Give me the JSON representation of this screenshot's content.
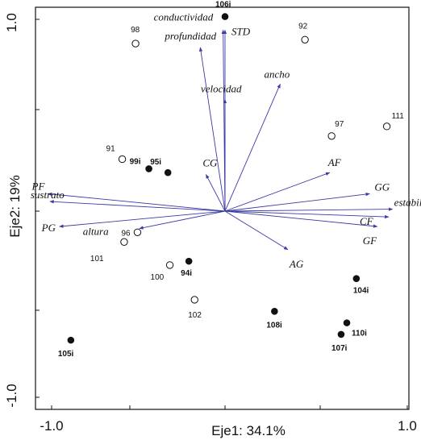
{
  "chart_data": {
    "type": "biplot",
    "xlabel": "Eje1: 34.1%",
    "ylabel": "Eje2: 19%",
    "xlim": [
      -1.0,
      1.0
    ],
    "ylim": [
      -1.0,
      1.0
    ],
    "x_tick_labels": [
      "-1.0",
      "1.0"
    ],
    "y_tick_labels": [
      "1.0",
      "-1.0"
    ],
    "vectors": [
      {
        "label": "conductividad",
        "x": -0.01,
        "y": 0.94
      },
      {
        "label": "STD",
        "x": 0.0,
        "y": 0.94
      },
      {
        "label": "profundidad",
        "x": -0.13,
        "y": 0.85
      },
      {
        "label": "velocidad",
        "x": 0.0,
        "y": 0.58
      },
      {
        "label": "ancho",
        "x": 0.29,
        "y": 0.66
      },
      {
        "label": "CG",
        "x": -0.1,
        "y": 0.19
      },
      {
        "label": "AF",
        "x": 0.55,
        "y": 0.2
      },
      {
        "label": "GG",
        "x": 0.76,
        "y": 0.09
      },
      {
        "label": "estabilidad",
        "x": 0.88,
        "y": 0.01
      },
      {
        "label": "CF",
        "x": 0.86,
        "y": -0.03
      },
      {
        "label": "GF",
        "x": 0.8,
        "y": -0.08
      },
      {
        "label": "AG",
        "x": 0.33,
        "y": -0.2
      },
      {
        "label": "PF",
        "x": -0.93,
        "y": 0.09
      },
      {
        "label": "sustrato",
        "x": -0.92,
        "y": 0.05
      },
      {
        "label": "PG",
        "x": -0.87,
        "y": -0.08
      },
      {
        "label": "altura",
        "x": -0.45,
        "y": -0.09
      }
    ],
    "series": [
      {
        "marker": "open-circle",
        "points": [
          {
            "label": "98",
            "x": -0.47,
            "y": 0.87
          },
          {
            "label": "92",
            "x": 0.42,
            "y": 0.89
          },
          {
            "label": "111",
            "x": 0.85,
            "y": 0.44
          },
          {
            "label": "97",
            "x": 0.56,
            "y": 0.39
          },
          {
            "label": "91",
            "x": -0.54,
            "y": 0.27
          },
          {
            "label": "96",
            "x": -0.46,
            "y": -0.11
          },
          {
            "label": "101",
            "x": -0.53,
            "y": -0.16
          },
          {
            "label": "100",
            "x": -0.29,
            "y": -0.28
          },
          {
            "label": "102",
            "x": -0.16,
            "y": -0.46
          }
        ]
      },
      {
        "marker": "filled-circle",
        "points": [
          {
            "label": "106i",
            "x": 0.0,
            "y": 1.01
          },
          {
            "label": "99i",
            "x": -0.4,
            "y": 0.22
          },
          {
            "label": "95i",
            "x": -0.3,
            "y": 0.2
          },
          {
            "label": "94i",
            "x": -0.19,
            "y": -0.26
          },
          {
            "label": "104i",
            "x": 0.69,
            "y": -0.35
          },
          {
            "label": "108i",
            "x": 0.26,
            "y": -0.52
          },
          {
            "label": "110i",
            "x": 0.64,
            "y": -0.58
          },
          {
            "label": "107i",
            "x": 0.61,
            "y": -0.64
          },
          {
            "label": "105i",
            "x": -0.81,
            "y": -0.67
          }
        ]
      }
    ]
  }
}
